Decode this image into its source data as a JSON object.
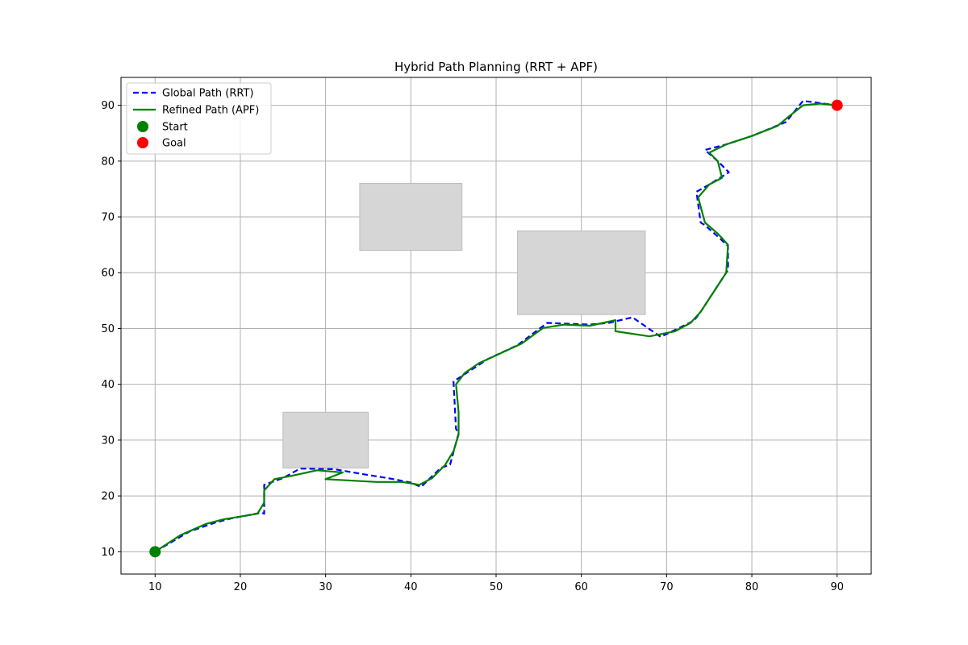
{
  "chart_data": {
    "type": "line",
    "title": "Hybrid Path Planning (RRT + APF)",
    "xlabel": "",
    "ylabel": "",
    "xlim": [
      6,
      94
    ],
    "ylim": [
      6,
      95
    ],
    "xticks": [
      10,
      20,
      30,
      40,
      50,
      60,
      70,
      80,
      90
    ],
    "yticks": [
      10,
      20,
      30,
      40,
      50,
      60,
      70,
      80,
      90
    ],
    "grid": true,
    "legend_position": "top-left",
    "obstacles": [
      {
        "x": 25,
        "y": 25,
        "width": 10,
        "height": 10,
        "color": "#d6d6d6"
      },
      {
        "x": 34,
        "y": 64,
        "width": 12,
        "height": 12,
        "color": "#d6d6d6"
      },
      {
        "x": 52.5,
        "y": 52.5,
        "width": 15,
        "height": 15,
        "color": "#d6d6d6"
      }
    ],
    "series": [
      {
        "name": "Global Path (RRT)",
        "style": "dashed",
        "color": "#0000ff",
        "points": [
          [
            10,
            10
          ],
          [
            14,
            13.6
          ],
          [
            17,
            15.2
          ],
          [
            19,
            16
          ],
          [
            22.5,
            17
          ],
          [
            22.8,
            16.8
          ],
          [
            22.8,
            22
          ],
          [
            25,
            23.2
          ],
          [
            27,
            24.9
          ],
          [
            31,
            24.8
          ],
          [
            34,
            24
          ],
          [
            38,
            23
          ],
          [
            40,
            22.4
          ],
          [
            41.2,
            21.6
          ],
          [
            42,
            22.8
          ],
          [
            43.5,
            25
          ],
          [
            44.6,
            25.6
          ],
          [
            45.6,
            31.2
          ],
          [
            45.3,
            32
          ],
          [
            45,
            40.5
          ],
          [
            46.5,
            42
          ],
          [
            49,
            44.5
          ],
          [
            52.5,
            47
          ],
          [
            56,
            51
          ],
          [
            61,
            50.7
          ],
          [
            63.2,
            51
          ],
          [
            66,
            52
          ],
          [
            69.3,
            48.5
          ],
          [
            72,
            50.5
          ],
          [
            73.2,
            51.4
          ],
          [
            74,
            53
          ],
          [
            77.2,
            60.5
          ],
          [
            77.2,
            64.8
          ],
          [
            76,
            66.5
          ],
          [
            74.5,
            68.5
          ],
          [
            74,
            69
          ],
          [
            73.5,
            74.5
          ],
          [
            75,
            75.8
          ],
          [
            77.3,
            78
          ],
          [
            76,
            80
          ],
          [
            74.5,
            82
          ],
          [
            77,
            83
          ],
          [
            80,
            84.5
          ],
          [
            84,
            87
          ],
          [
            86,
            90.8
          ],
          [
            90,
            90
          ]
        ]
      },
      {
        "name": "Refined Path (APF)",
        "style": "solid",
        "color": "#008000",
        "points": [
          [
            10,
            10
          ],
          [
            13,
            13
          ],
          [
            16,
            15
          ],
          [
            18,
            15.8
          ],
          [
            22,
            16.8
          ],
          [
            22.8,
            18.8
          ],
          [
            22.8,
            21
          ],
          [
            24,
            23
          ],
          [
            26,
            23.6
          ],
          [
            29,
            24.6
          ],
          [
            32,
            24.2
          ],
          [
            30,
            23
          ],
          [
            36,
            22.5
          ],
          [
            39,
            22.5
          ],
          [
            41,
            22
          ],
          [
            42.5,
            23.2
          ],
          [
            44,
            25.5
          ],
          [
            45,
            28
          ],
          [
            45.6,
            31
          ],
          [
            45.6,
            35
          ],
          [
            45.3,
            40
          ],
          [
            46.3,
            42
          ],
          [
            48,
            43.8
          ],
          [
            50,
            45.2
          ],
          [
            53,
            47.3
          ],
          [
            55.5,
            50.1
          ],
          [
            58,
            50.7
          ],
          [
            61,
            50.5
          ],
          [
            64,
            51.5
          ],
          [
            64,
            49.5
          ],
          [
            68,
            48.6
          ],
          [
            71,
            49.5
          ],
          [
            72.8,
            51
          ],
          [
            74,
            53
          ],
          [
            77,
            60
          ],
          [
            77.2,
            65
          ],
          [
            76,
            67
          ],
          [
            74.5,
            69
          ],
          [
            73.7,
            73.5
          ],
          [
            75,
            75.8
          ],
          [
            76.5,
            77
          ],
          [
            76,
            80
          ],
          [
            75,
            81.5
          ],
          [
            77,
            83
          ],
          [
            80,
            84.5
          ],
          [
            83,
            86.3
          ],
          [
            84.5,
            88.2
          ],
          [
            86,
            90
          ],
          [
            88,
            90.3
          ],
          [
            90,
            90
          ]
        ]
      }
    ],
    "markers": [
      {
        "name": "Start",
        "x": 10,
        "y": 10,
        "color": "#008000"
      },
      {
        "name": "Goal",
        "x": 90,
        "y": 90,
        "color": "#ff0000"
      }
    ]
  }
}
